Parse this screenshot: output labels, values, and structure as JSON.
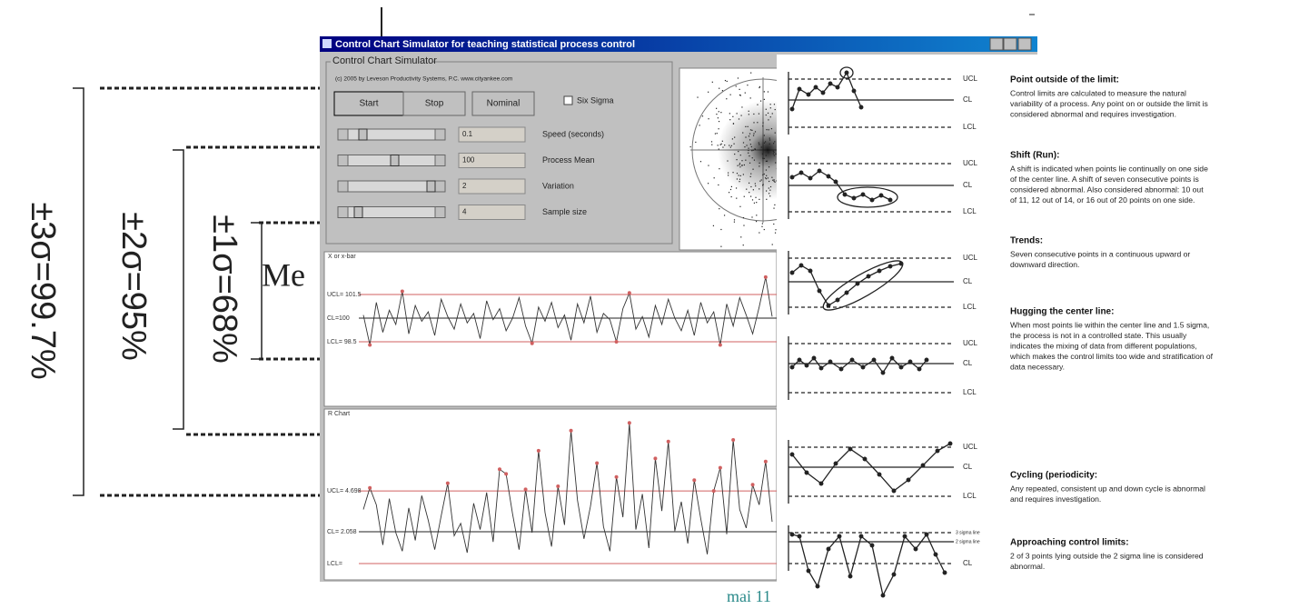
{
  "diagram": {
    "labels": [
      "±3σ=99.7%",
      "±2σ=95%",
      "±1σ=68%"
    ],
    "mean_label": "Me"
  },
  "window": {
    "title": "Control Chart Simulator for teaching statistical process control",
    "group_title": "Control Chart Simulator",
    "copyright": "(c) 2005 by Leveson Productivity Systems, P.C. www.cityankee.com",
    "buttons": [
      "Start",
      "Stop",
      "Nominal"
    ],
    "checkbox": "Six Sigma",
    "controls": [
      {
        "value": "0.1",
        "label": "Speed (seconds)"
      },
      {
        "value": "100",
        "label": "Process Mean"
      },
      {
        "value": "2",
        "label": "Variation"
      },
      {
        "value": "4",
        "label": "Sample size"
      }
    ]
  },
  "xbar_chart": {
    "title": "X or x-bar",
    "ucl_label": "UCL= 101.5",
    "cl_label": "CL=100",
    "lcl_label": "LCL= 98.5",
    "ucl": 101.5,
    "cl": 100,
    "lcl": 98.5,
    "ylim": [
      97,
      103
    ],
    "values": [
      100.2,
      98.3,
      101.0,
      99.1,
      100.5,
      99.6,
      101.7,
      99.0,
      100.8,
      99.8,
      100.4,
      98.9,
      101.2,
      100.1,
      99.3,
      100.9,
      99.7,
      100.3,
      98.7,
      101.1,
      99.9,
      100.6,
      99.2,
      100.0,
      101.3,
      99.5,
      98.4,
      100.7,
      99.8,
      101.0,
      99.4,
      100.2,
      98.6,
      100.9,
      99.7,
      101.4,
      99.1,
      100.3,
      99.9,
      98.5,
      100.6,
      101.6,
      99.3,
      100.1,
      98.8,
      100.8,
      99.6,
      101.2,
      100.0,
      99.2,
      100.5,
      98.9,
      101.0,
      99.7,
      100.4,
      98.3,
      100.9,
      99.5,
      101.3,
      100.2,
      99.0,
      100.7,
      102.6,
      100.1
    ]
  },
  "r_chart": {
    "title": "R Chart",
    "ucl_label": "UCL= 4.698",
    "cl_label": "CL= 2.058",
    "lcl_label": "LCL=",
    "ucl": 4.698,
    "cl": 2.058,
    "lcl": 0,
    "ylim": [
      0,
      10
    ],
    "values": [
      3.5,
      4.9,
      3.8,
      1.2,
      4.2,
      2.0,
      0.8,
      3.6,
      1.5,
      4.4,
      2.8,
      0.9,
      3.1,
      5.2,
      1.8,
      2.6,
      0.7,
      3.9,
      2.2,
      4.6,
      1.4,
      6.1,
      5.8,
      3.2,
      0.9,
      4.8,
      2.0,
      7.3,
      3.3,
      1.1,
      5.0,
      2.5,
      8.6,
      4.1,
      1.6,
      3.7,
      6.5,
      2.4,
      0.8,
      5.6,
      3.0,
      9.1,
      2.2,
      4.5,
      1.0,
      6.8,
      3.4,
      7.9,
      2.1,
      4.0,
      1.3,
      5.4,
      2.9,
      0.6,
      4.7,
      6.2,
      1.9,
      8.0,
      3.5,
      2.3,
      5.1,
      3.8,
      6.6,
      2.7
    ]
  },
  "rules": [
    {
      "heading": "Point outside of the limit:",
      "labels": [
        "UCL",
        "CL",
        "LCL"
      ],
      "lines": [
        "Control limits are calculated to measure the natural",
        "variability of a process. Any point on or outside the limit is",
        "considered abnormal and requires investigation."
      ]
    },
    {
      "heading": "Shift (Run):",
      "labels": [
        "UCL",
        "CL",
        "LCL"
      ],
      "lines": [
        "A shift is indicated when points lie continually on one side",
        "of the center line.  A shift of seven consecutive points is",
        "considered abnormal.  Also considered abnormal: 10 out",
        "of 11, 12 out of 14, or 16 out of 20 points on one side."
      ]
    },
    {
      "heading": "Trends:",
      "labels": [
        "UCL",
        "CL",
        "LCL"
      ],
      "lines": [
        "Seven consecutive points in a continuous upward or",
        "downward direction."
      ]
    },
    {
      "heading": "Hugging the center line:",
      "labels": [
        "UCL",
        "CL",
        "LCL"
      ],
      "lines": [
        "When most points lie within the center line and 1.5 sigma,",
        "the process is not in a controlled state. This usually",
        "indicates the mixing of data from different populations,",
        "which makes the control limits too wide and stratification of",
        "data necessary."
      ]
    },
    {
      "heading": "Cycling (periodicity:",
      "labels": [
        "UCL",
        "CL",
        "LCL"
      ],
      "lines": [
        "Any repeated, consistent up and down cycle is abnormal",
        "and requires investigation."
      ]
    },
    {
      "heading": "Approaching control limits:",
      "labels": [
        "3 sigma line",
        "2 sigma line",
        "CL"
      ],
      "lines": [
        "2 of 3 points lying outside the 2 sigma line is considered",
        "abnormal."
      ]
    }
  ],
  "footer": "mai 11"
}
